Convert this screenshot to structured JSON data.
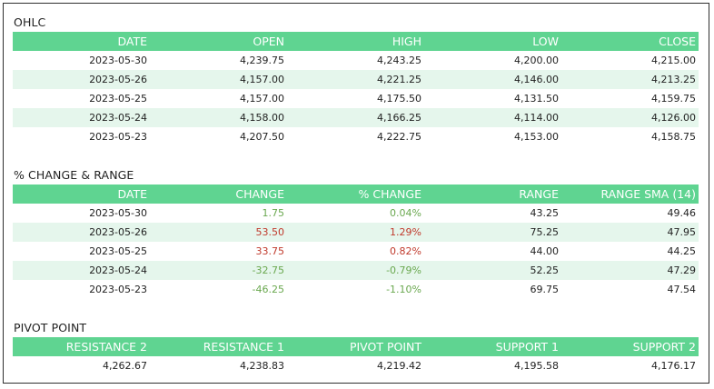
{
  "colors": {
    "header_bg": "#5fd491",
    "row_alt_bg": "#e5f6ec",
    "positive": "#6aa84f",
    "negative": "#c0392b"
  },
  "ohlc": {
    "title": "OHLC",
    "columns": [
      "DATE",
      "OPEN",
      "HIGH",
      "LOW",
      "CLOSE"
    ],
    "rows": [
      [
        "2023-05-30",
        "4,239.75",
        "4,243.25",
        "4,200.00",
        "4,215.00"
      ],
      [
        "2023-05-26",
        "4,157.00",
        "4,221.25",
        "4,146.00",
        "4,213.25"
      ],
      [
        "2023-05-25",
        "4,157.00",
        "4,175.50",
        "4,131.50",
        "4,159.75"
      ],
      [
        "2023-05-24",
        "4,158.00",
        "4,166.25",
        "4,114.00",
        "4,126.00"
      ],
      [
        "2023-05-23",
        "4,207.50",
        "4,222.75",
        "4,153.00",
        "4,158.75"
      ]
    ]
  },
  "change": {
    "title": "% CHANGE & RANGE",
    "columns": [
      "DATE",
      "CHANGE",
      "% CHANGE",
      "RANGE",
      "RANGE SMA (14)"
    ],
    "rows": [
      [
        "2023-05-30",
        "1.75",
        "0.04%",
        "43.25",
        "49.46"
      ],
      [
        "2023-05-26",
        "53.50",
        "1.29%",
        "75.25",
        "47.95"
      ],
      [
        "2023-05-25",
        "33.75",
        "0.82%",
        "44.00",
        "44.25"
      ],
      [
        "2023-05-24",
        "-32.75",
        "-0.79%",
        "52.25",
        "47.29"
      ],
      [
        "2023-05-23",
        "-46.25",
        "-1.10%",
        "69.75",
        "47.54"
      ]
    ]
  },
  "pivot": {
    "title": "PIVOT POINT",
    "columns": [
      "RESISTANCE 2",
      "RESISTANCE 1",
      "PIVOT POINT",
      "SUPPORT 1",
      "SUPPORT 2"
    ],
    "rows": [
      [
        "4,262.67",
        "4,238.83",
        "4,219.42",
        "4,195.58",
        "4,176.17"
      ]
    ]
  }
}
